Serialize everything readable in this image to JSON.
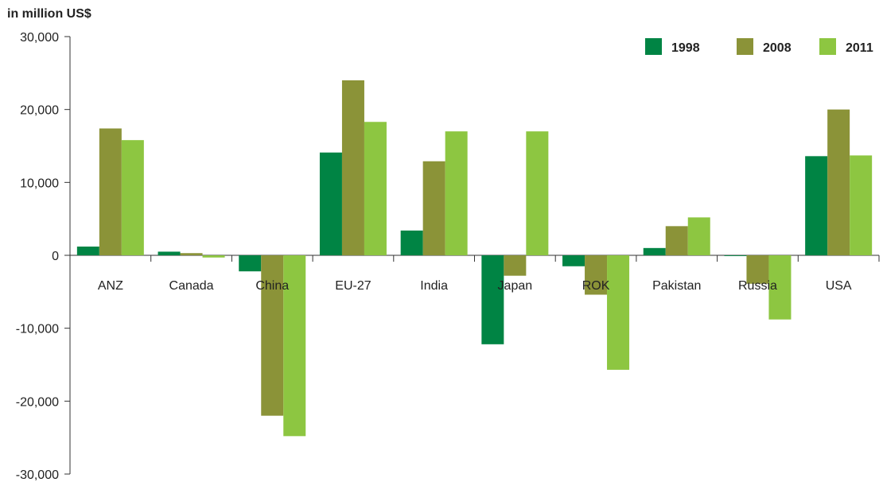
{
  "chart_data": {
    "type": "bar",
    "unit_label": "in million US$",
    "categories": [
      "ANZ",
      "Canada",
      "China",
      "EU-27",
      "India",
      "Japan",
      "ROK",
      "Pakistan",
      "Russia",
      "USA"
    ],
    "series": [
      {
        "name": "1998",
        "color": "#008444",
        "values": [
          1200,
          500,
          -2200,
          14100,
          3400,
          -12200,
          -1500,
          1000,
          -100,
          13600
        ]
      },
      {
        "name": "2008",
        "color": "#8b9338",
        "values": [
          17400,
          300,
          -22000,
          24000,
          12900,
          -2800,
          -5400,
          4000,
          -3900,
          20000
        ]
      },
      {
        "name": "2011",
        "color": "#8dc641",
        "values": [
          15800,
          -300,
          -24800,
          18300,
          17000,
          17000,
          -15700,
          5200,
          -8800,
          13700
        ]
      }
    ],
    "yticks": [
      "30,000",
      "20,000",
      "10,000",
      "0",
      "-10,000",
      "-20,000",
      "-30,000"
    ],
    "ytick_values": [
      30000,
      20000,
      10000,
      0,
      -10000,
      -20000,
      -30000
    ],
    "ylim": [
      -30000,
      30000
    ],
    "legend_position": "top-right",
    "grid": false
  }
}
